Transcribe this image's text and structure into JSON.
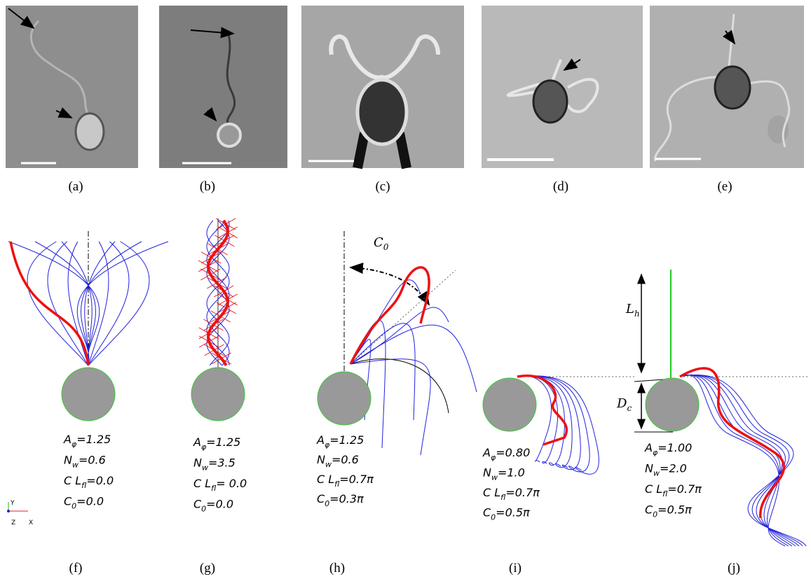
{
  "top_panels": [
    {
      "label": "(a)"
    },
    {
      "label": "(b)"
    },
    {
      "label": "(c)"
    },
    {
      "label": "(d)"
    },
    {
      "label": "(e)"
    }
  ],
  "bottom_panels": [
    {
      "label": "(f)",
      "parameters": [
        {
          "symbol": "A",
          "subscript": "φ",
          "value": "=1.25"
        },
        {
          "symbol": "N",
          "subscript": "w",
          "value": "=0.6"
        },
        {
          "symbol": "C L",
          "subscript": "fl",
          "value": "=0.0"
        },
        {
          "symbol": "C",
          "subscript": "0",
          "value": "=0.0"
        }
      ]
    },
    {
      "label": "(g)",
      "parameters": [
        {
          "symbol": "A",
          "subscript": "φ",
          "value": "=1.25"
        },
        {
          "symbol": "N",
          "subscript": "w",
          "value": "=3.5"
        },
        {
          "symbol": "C L",
          "subscript": "fl",
          "value": "= 0.0"
        },
        {
          "symbol": "C",
          "subscript": "0",
          "value": "=0.0"
        }
      ]
    },
    {
      "label": "(h)",
      "parameters": [
        {
          "symbol": "A",
          "subscript": "φ",
          "value": "=1.25"
        },
        {
          "symbol": "N",
          "subscript": "w",
          "value": "=0.6"
        },
        {
          "symbol": "C L",
          "subscript": "fl",
          "value": "=0.7π"
        },
        {
          "symbol": "C",
          "subscript": "0",
          "value": "=0.3π"
        }
      ]
    },
    {
      "label": "(i)",
      "parameters": [
        {
          "symbol": "A",
          "subscript": "φ",
          "value": "=0.80"
        },
        {
          "symbol": "N",
          "subscript": "w",
          "value": "=1.0"
        },
        {
          "symbol": "C L",
          "subscript": "fl",
          "value": "=0.7π"
        },
        {
          "symbol": "C",
          "subscript": "0",
          "value": "=0.5π"
        }
      ]
    },
    {
      "label": "(j)",
      "parameters": [
        {
          "symbol": "A",
          "subscript": "φ",
          "value": "=1.00"
        },
        {
          "symbol": "N",
          "subscript": "w",
          "value": "=2.0"
        },
        {
          "symbol": "C L",
          "subscript": "fl",
          "value": "=0.7π"
        },
        {
          "symbol": "C",
          "subscript": "0",
          "value": "=0.5π"
        }
      ]
    }
  ],
  "annotations": {
    "c0": {
      "symbol": "C",
      "subscript": "0"
    },
    "lh": {
      "symbol": "L",
      "subscript": "h"
    },
    "dc": {
      "symbol": "D",
      "subscript": "c"
    }
  },
  "axes": {
    "y": "Y",
    "z": "Z",
    "x": "X"
  }
}
